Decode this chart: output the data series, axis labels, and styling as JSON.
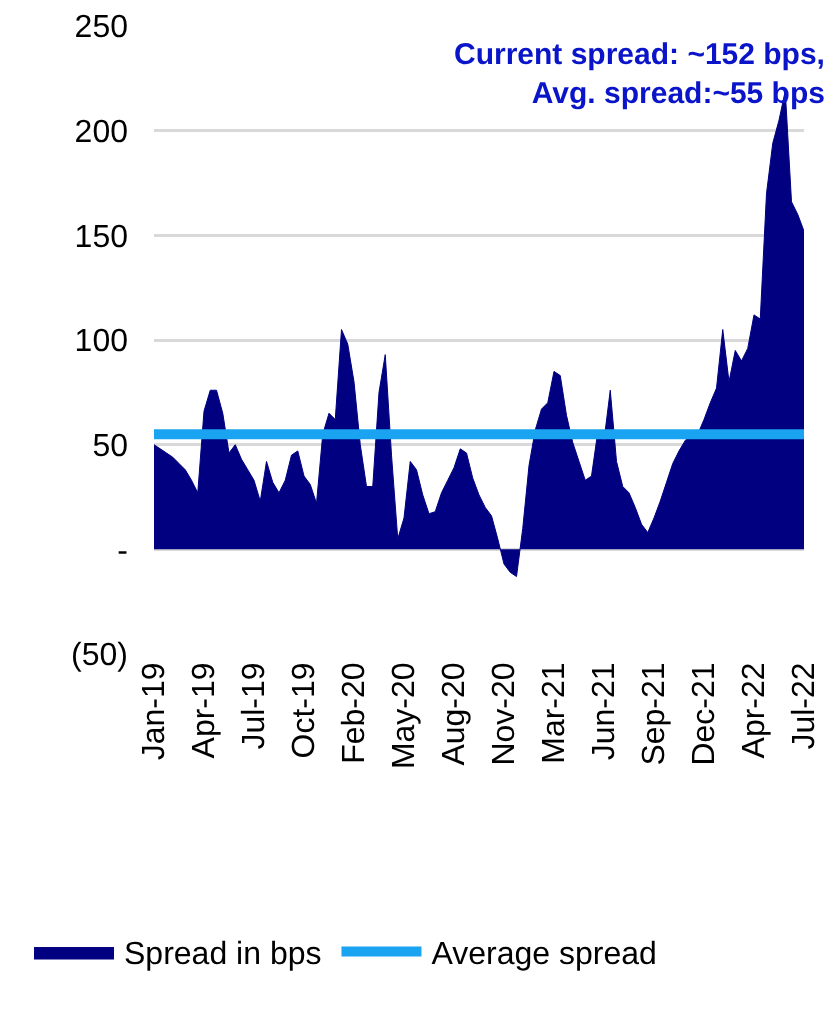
{
  "chart_data": {
    "type": "area",
    "categories": [
      "Jan-19",
      null,
      null,
      null,
      null,
      null,
      null,
      null,
      "Apr-19",
      null,
      null,
      null,
      null,
      null,
      null,
      null,
      "Jul-19",
      null,
      null,
      null,
      null,
      null,
      null,
      null,
      "Oct-19",
      null,
      null,
      null,
      null,
      null,
      null,
      null,
      "Feb-20",
      null,
      null,
      null,
      null,
      null,
      null,
      null,
      "May-20",
      null,
      null,
      null,
      null,
      null,
      null,
      null,
      "Aug-20",
      null,
      null,
      null,
      null,
      null,
      null,
      null,
      "Nov-20",
      null,
      null,
      null,
      null,
      null,
      null,
      null,
      "Mar-21",
      null,
      null,
      null,
      null,
      null,
      null,
      null,
      "Jun-21",
      null,
      null,
      null,
      null,
      null,
      null,
      null,
      "Sep-21",
      null,
      null,
      null,
      null,
      null,
      null,
      null,
      "Dec-21",
      null,
      null,
      null,
      null,
      null,
      null,
      null,
      "Apr-22",
      null,
      null,
      null,
      null,
      null,
      null,
      null,
      "Jul-22"
    ],
    "series": [
      {
        "name": "Spread in bps",
        "color": "#000080",
        "values": [
          50,
          48,
          46,
          44,
          41,
          38,
          33,
          27,
          66,
          76,
          76,
          65,
          46,
          50,
          43,
          38,
          33,
          23,
          42,
          32,
          27,
          33,
          45,
          47,
          35,
          31,
          22,
          55,
          65,
          62,
          105,
          98,
          80,
          50,
          30,
          30,
          75,
          93,
          45,
          5,
          15,
          42,
          38,
          26,
          17,
          18,
          27,
          33,
          39,
          48,
          46,
          34,
          26,
          20,
          16,
          5,
          -7,
          -11,
          -13,
          10,
          40,
          57,
          67,
          70,
          85,
          83,
          64,
          51,
          42,
          33,
          35,
          56,
          52,
          76,
          42,
          30,
          27,
          20,
          12,
          8,
          15,
          23,
          32,
          41,
          47,
          52,
          55,
          55,
          62,
          70,
          77,
          105,
          80,
          95,
          90,
          96,
          112,
          110,
          170,
          194,
          205,
          219,
          166,
          160,
          152
        ]
      }
    ],
    "ref_lines": [
      {
        "axis": "y",
        "value": 55,
        "label": "Average spread",
        "color": "#1aa3f0"
      }
    ],
    "annotations": [
      "Current spread: ~152 bps,\nAvg. spread:~55 bps"
    ],
    "ylim": [
      -50,
      250
    ],
    "yticks": [
      {
        "value": -50,
        "label": "(50)"
      },
      {
        "value": 0,
        "label": "-"
      },
      50,
      100,
      150,
      200,
      250
    ],
    "grid": "y",
    "legend": "bottom"
  }
}
